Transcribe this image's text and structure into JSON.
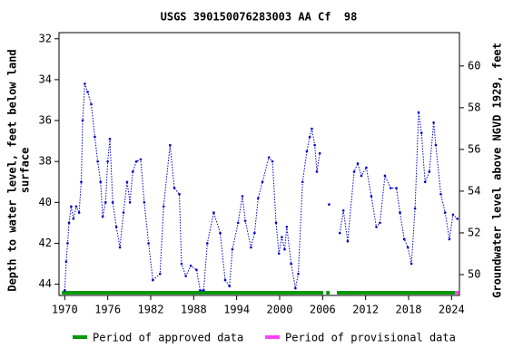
{
  "chart_data": {
    "type": "line",
    "title": "USGS 390150076283003 AA Cf  98",
    "y_label": [
      "Depth to water level, feet below land",
      "surface"
    ],
    "y2_label": "Groundwater level above NGVD 1929, feet",
    "xlim": [
      1969.2,
      2025.1
    ],
    "xticks": [
      1970,
      1976,
      1982,
      1988,
      1994,
      2000,
      2006,
      2012,
      2018,
      2024
    ],
    "ylim": [
      31.7,
      44.55
    ],
    "y_inverted": true,
    "yticks": [
      32,
      34,
      36,
      38,
      40,
      42,
      44
    ],
    "y2lim": [
      49.0,
      61.6
    ],
    "y2ticks": [
      50,
      52,
      54,
      56,
      58,
      60
    ],
    "series": [
      {
        "name": "Depth to water level",
        "color": "#0000cc",
        "x": [
          1970.0,
          1970.2,
          1970.4,
          1970.6,
          1970.9,
          1971.2,
          1971.6,
          1972.0,
          1972.3,
          1972.5,
          1972.8,
          1973.2,
          1973.7,
          1974.2,
          1974.6,
          1975.0,
          1975.3,
          1975.7,
          1976.0,
          1976.3,
          1976.7,
          1977.2,
          1977.7,
          1978.2,
          1978.7,
          1979.1,
          1979.5,
          1980.0,
          1980.6,
          1981.1,
          1981.7,
          1982.3,
          1983.3,
          1983.8,
          1984.7,
          1985.3,
          1986.0,
          1986.3,
          1986.9,
          1987.6,
          1988.4,
          1988.9,
          1989.4,
          1989.9,
          1990.8,
          1991.7,
          1992.4,
          1993.0,
          1993.4,
          1994.2,
          1994.8,
          1995.2,
          1996.0,
          1996.5,
          1997.0,
          1997.6,
          1998.5,
          1999.0,
          1999.5,
          1999.9,
          2000.3,
          2000.7,
          2001.0,
          2001.6,
          2002.2,
          2002.6,
          2003.2,
          2003.8,
          2004.2,
          2004.5,
          2004.9,
          2005.2,
          2005.6,
          2006.3,
          2006.9,
          2007.6,
          2008.4,
          2008.9,
          2009.5,
          2010.4,
          2010.9,
          2011.4,
          2012.1,
          2012.8,
          2013.5,
          2014.0,
          2014.7,
          2015.5,
          2016.3,
          2016.8,
          2017.4,
          2017.9,
          2018.4,
          2018.9,
          2019.4,
          2019.8,
          2020.3,
          2020.9,
          2021.5,
          2021.8,
          2022.5,
          2023.1,
          2023.7,
          2024.2,
          2024.8
        ],
        "values": [
          44.3,
          42.9,
          42.0,
          41.0,
          40.2,
          40.8,
          40.2,
          40.5,
          39.0,
          36.0,
          34.2,
          34.6,
          35.2,
          36.8,
          38.0,
          39.0,
          40.7,
          40.0,
          38.0,
          36.9,
          40.0,
          41.2,
          42.2,
          40.5,
          39.0,
          40.0,
          38.5,
          38.0,
          37.9,
          40.0,
          42.0,
          43.8,
          43.5,
          40.2,
          37.2,
          39.3,
          39.6,
          43.0,
          43.6,
          43.1,
          43.3,
          44.3,
          44.3,
          42.0,
          40.5,
          41.5,
          43.8,
          44.1,
          42.3,
          41.0,
          39.7,
          40.9,
          42.2,
          41.5,
          39.8,
          39.0,
          37.8,
          38.0,
          41.0,
          42.5,
          41.7,
          42.3,
          41.2,
          43.0,
          44.2,
          43.5,
          39.0,
          37.5,
          36.8,
          36.4,
          37.2,
          38.5,
          37.6,
          null,
          40.1,
          null,
          41.5,
          40.4,
          41.9,
          38.5,
          38.1,
          38.7,
          38.3,
          39.7,
          41.2,
          41.0,
          38.7,
          39.3,
          39.3,
          40.5,
          41.8,
          42.2,
          43.0,
          40.3,
          35.6,
          36.6,
          39.0,
          38.5,
          36.1,
          37.2,
          39.6,
          40.5,
          41.8,
          40.6,
          40.8
        ]
      }
    ],
    "legend": [
      {
        "name": "Period of approved data",
        "color": "#009900"
      },
      {
        "name": "Period of provisional data",
        "color": "#ff44ff"
      }
    ],
    "periods": [
      {
        "legend": 0,
        "start": 1969.6,
        "end": 2006.1
      },
      {
        "legend": 0,
        "start": 2006.5,
        "end": 2007.0
      },
      {
        "legend": 0,
        "start": 2008.0,
        "end": 2024.5
      },
      {
        "legend": 1,
        "start": 2024.5,
        "end": 2025.0
      }
    ]
  }
}
